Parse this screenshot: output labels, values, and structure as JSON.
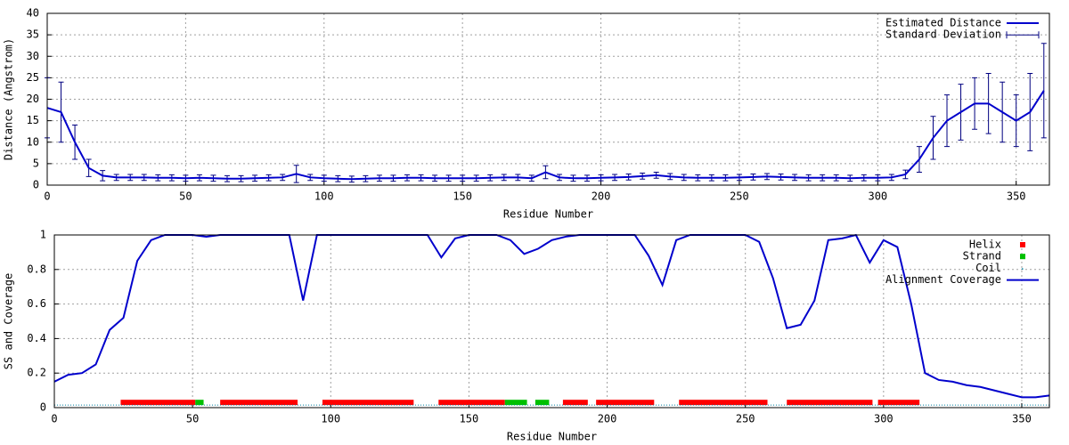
{
  "chart_data": [
    {
      "type": "line",
      "y_label": "Distance (Angstrom)",
      "x_label": "Residue Number",
      "x": [
        0,
        5,
        10,
        15,
        20,
        25,
        30,
        35,
        40,
        45,
        50,
        55,
        60,
        65,
        70,
        75,
        80,
        85,
        90,
        95,
        100,
        105,
        110,
        115,
        120,
        125,
        130,
        135,
        140,
        145,
        150,
        155,
        160,
        165,
        170,
        175,
        180,
        185,
        190,
        195,
        200,
        205,
        210,
        215,
        220,
        225,
        230,
        235,
        240,
        245,
        250,
        255,
        260,
        265,
        270,
        275,
        280,
        285,
        290,
        295,
        300,
        305,
        310,
        315,
        320,
        325,
        330,
        335,
        340,
        345,
        350,
        355,
        360
      ],
      "series": [
        {
          "name": "Estimated Distance",
          "color": "#0000cc",
          "values": [
            18,
            17,
            10,
            4,
            2.2,
            1.8,
            1.8,
            1.8,
            1.7,
            1.7,
            1.6,
            1.7,
            1.6,
            1.5,
            1.5,
            1.6,
            1.7,
            1.8,
            2.6,
            1.8,
            1.6,
            1.5,
            1.4,
            1.5,
            1.6,
            1.6,
            1.7,
            1.7,
            1.6,
            1.6,
            1.6,
            1.6,
            1.7,
            1.8,
            1.8,
            1.6,
            3,
            1.8,
            1.6,
            1.6,
            1.7,
            1.8,
            1.9,
            2.1,
            2.3,
            2,
            1.8,
            1.7,
            1.7,
            1.7,
            1.8,
            1.9,
            2,
            1.9,
            1.8,
            1.7,
            1.7,
            1.7,
            1.6,
            1.7,
            1.7,
            1.8,
            2.5,
            6,
            11,
            15,
            17,
            19,
            19,
            17,
            15,
            17,
            22
          ]
        }
      ],
      "error_bars": {
        "name": "Standard Deviation",
        "color": "#000080",
        "values": [
          7,
          7,
          4,
          2,
          1.2,
          0.7,
          0.7,
          0.7,
          0.7,
          0.7,
          0.7,
          0.7,
          0.7,
          0.7,
          0.7,
          0.7,
          0.7,
          0.7,
          2,
          0.7,
          0.7,
          0.7,
          0.7,
          0.7,
          0.7,
          0.7,
          0.7,
          0.7,
          0.7,
          0.7,
          0.7,
          0.7,
          0.7,
          0.7,
          0.7,
          0.7,
          1.5,
          0.7,
          0.7,
          0.7,
          0.7,
          0.7,
          0.7,
          0.7,
          0.7,
          0.7,
          0.7,
          0.7,
          0.7,
          0.7,
          0.7,
          0.7,
          0.7,
          0.7,
          0.7,
          0.7,
          0.7,
          0.7,
          0.7,
          0.7,
          0.7,
          0.7,
          1,
          3,
          5,
          6,
          6.5,
          6,
          7,
          7,
          6,
          9,
          11
        ]
      },
      "xlim": [
        0,
        362
      ],
      "xticks": [
        0,
        50,
        100,
        150,
        200,
        250,
        300,
        350
      ],
      "ylim": [
        0,
        40
      ],
      "yticks": [
        0,
        5,
        10,
        15,
        20,
        25,
        30,
        35,
        40
      ],
      "grid": true,
      "legend": "top-right"
    },
    {
      "type": "line",
      "y_label": "SS and Coverage",
      "x_label": "Residue Number",
      "x": [
        0,
        5,
        10,
        15,
        20,
        25,
        30,
        35,
        40,
        45,
        50,
        55,
        60,
        65,
        70,
        75,
        80,
        85,
        90,
        95,
        100,
        105,
        110,
        115,
        120,
        125,
        130,
        135,
        140,
        145,
        150,
        155,
        160,
        165,
        170,
        175,
        180,
        185,
        190,
        195,
        200,
        205,
        210,
        215,
        220,
        225,
        230,
        235,
        240,
        245,
        250,
        255,
        260,
        265,
        270,
        275,
        280,
        285,
        290,
        295,
        300,
        305,
        310,
        315,
        320,
        325,
        330,
        335,
        340,
        345,
        350,
        355,
        360
      ],
      "ss_tracks": [
        {
          "name": "Helix",
          "color": "#ff0000",
          "y": 0.03,
          "ranges": [
            [
              24,
              51
            ],
            [
              60,
              88
            ],
            [
              97,
              130
            ],
            [
              139,
              163
            ],
            [
              184,
              193
            ],
            [
              196,
              217
            ],
            [
              226,
              258
            ],
            [
              265,
              296
            ],
            [
              298,
              313
            ]
          ]
        },
        {
          "name": "Strand",
          "color": "#00c000",
          "y": 0.03,
          "ranges": [
            [
              51,
              54
            ],
            [
              163,
              171
            ],
            [
              174,
              179
            ]
          ]
        },
        {
          "name": "Coil",
          "color": "#0080a0",
          "y": 0.015,
          "ranges": [
            [
              0,
              360
            ]
          ]
        }
      ],
      "series": [
        {
          "name": "Alignment Coverage",
          "color": "#0000cc",
          "values": [
            0.15,
            0.19,
            0.2,
            0.25,
            0.45,
            0.52,
            0.85,
            0.97,
            1,
            1,
            1,
            0.99,
            1,
            1,
            1,
            1,
            1,
            1,
            0.62,
            1,
            1,
            1,
            1,
            1,
            1,
            1,
            1,
            1,
            0.87,
            0.98,
            1,
            1,
            1,
            0.97,
            0.89,
            0.92,
            0.97,
            0.99,
            1,
            1,
            1,
            1,
            1,
            0.88,
            0.71,
            0.97,
            1,
            1,
            1,
            1,
            1,
            0.96,
            0.75,
            0.46,
            0.48,
            0.62,
            0.97,
            0.98,
            1,
            0.84,
            0.97,
            0.93,
            0.6,
            0.2,
            0.16,
            0.15,
            0.13,
            0.12,
            0.1,
            0.08,
            0.06,
            0.06,
            0.07
          ]
        }
      ],
      "xlim": [
        0,
        360
      ],
      "xticks": [
        0,
        50,
        100,
        150,
        200,
        250,
        300,
        350
      ],
      "ylim": [
        0,
        1
      ],
      "yticks": [
        0,
        0.2,
        0.4,
        0.6,
        0.8,
        1
      ],
      "grid": true,
      "legend": "top-right"
    }
  ]
}
